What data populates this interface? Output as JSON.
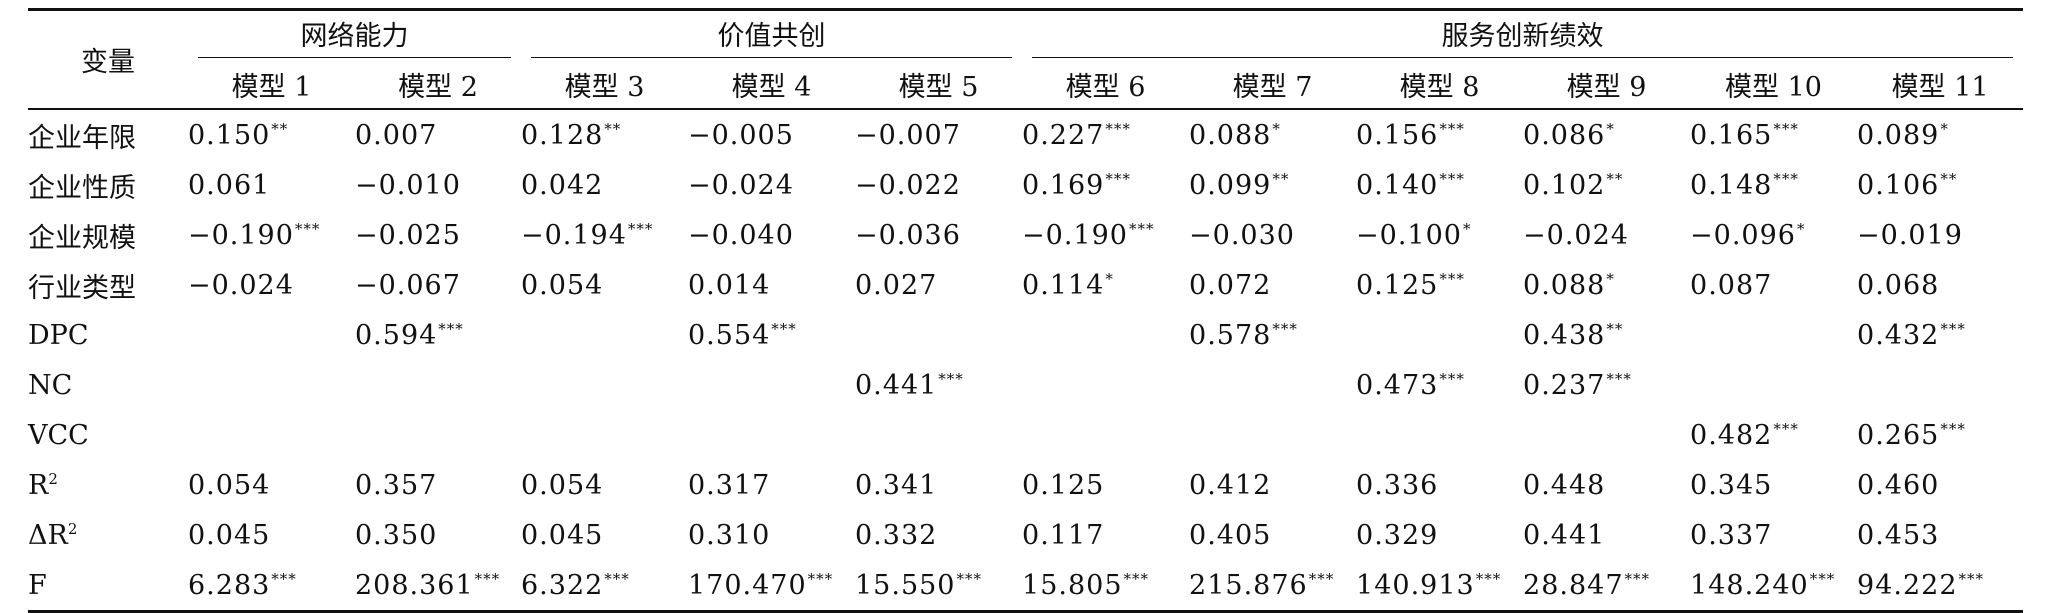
{
  "table": {
    "var_header": "变量",
    "groups": [
      {
        "label": "网络能力",
        "span": 2
      },
      {
        "label": "价值共创",
        "span": 3
      },
      {
        "label": "服务创新绩效",
        "span": 6
      }
    ],
    "models": [
      "模型 1",
      "模型 2",
      "模型 3",
      "模型 4",
      "模型 5",
      "模型 6",
      "模型 7",
      "模型 8",
      "模型 9",
      "模型 10",
      "模型 11"
    ],
    "rows": [
      {
        "label": "企业年限",
        "cells": [
          {
            "v": "0.150",
            "s": "**"
          },
          {
            "v": "0.007",
            "s": ""
          },
          {
            "v": "0.128",
            "s": "**"
          },
          {
            "v": "−0.005",
            "s": ""
          },
          {
            "v": "−0.007",
            "s": ""
          },
          {
            "v": "0.227",
            "s": "***"
          },
          {
            "v": "0.088",
            "s": "*"
          },
          {
            "v": "0.156",
            "s": "***"
          },
          {
            "v": "0.086",
            "s": "*"
          },
          {
            "v": "0.165",
            "s": "***"
          },
          {
            "v": "0.089",
            "s": "*"
          }
        ]
      },
      {
        "label": "企业性质",
        "cells": [
          {
            "v": "0.061",
            "s": ""
          },
          {
            "v": "−0.010",
            "s": ""
          },
          {
            "v": "0.042",
            "s": ""
          },
          {
            "v": "−0.024",
            "s": ""
          },
          {
            "v": "−0.022",
            "s": ""
          },
          {
            "v": "0.169",
            "s": "***"
          },
          {
            "v": "0.099",
            "s": "**"
          },
          {
            "v": "0.140",
            "s": "***"
          },
          {
            "v": "0.102",
            "s": "**"
          },
          {
            "v": "0.148",
            "s": "***"
          },
          {
            "v": "0.106",
            "s": "**"
          }
        ]
      },
      {
        "label": "企业规模",
        "cells": [
          {
            "v": "−0.190",
            "s": "***"
          },
          {
            "v": "−0.025",
            "s": ""
          },
          {
            "v": "−0.194",
            "s": "***"
          },
          {
            "v": "−0.040",
            "s": ""
          },
          {
            "v": "−0.036",
            "s": ""
          },
          {
            "v": "−0.190",
            "s": "***"
          },
          {
            "v": "−0.030",
            "s": ""
          },
          {
            "v": "−0.100",
            "s": "*"
          },
          {
            "v": "−0.024",
            "s": ""
          },
          {
            "v": "−0.096",
            "s": "*"
          },
          {
            "v": "−0.019",
            "s": ""
          }
        ]
      },
      {
        "label": "行业类型",
        "cells": [
          {
            "v": "−0.024",
            "s": ""
          },
          {
            "v": "−0.067",
            "s": ""
          },
          {
            "v": "0.054",
            "s": ""
          },
          {
            "v": "0.014",
            "s": ""
          },
          {
            "v": "0.027",
            "s": ""
          },
          {
            "v": "0.114",
            "s": "*"
          },
          {
            "v": "0.072",
            "s": ""
          },
          {
            "v": "0.125",
            "s": "***"
          },
          {
            "v": "0.088",
            "s": "*"
          },
          {
            "v": "0.087",
            "s": ""
          },
          {
            "v": "0.068",
            "s": ""
          }
        ]
      },
      {
        "label": "DPC",
        "cells": [
          {
            "v": "",
            "s": ""
          },
          {
            "v": "0.594",
            "s": "***"
          },
          {
            "v": "",
            "s": ""
          },
          {
            "v": "0.554",
            "s": "***"
          },
          {
            "v": "",
            "s": ""
          },
          {
            "v": "",
            "s": ""
          },
          {
            "v": "0.578",
            "s": "***"
          },
          {
            "v": "",
            "s": ""
          },
          {
            "v": "0.438",
            "s": "**"
          },
          {
            "v": "",
            "s": ""
          },
          {
            "v": "0.432",
            "s": "***"
          }
        ]
      },
      {
        "label": "NC",
        "cells": [
          {
            "v": "",
            "s": ""
          },
          {
            "v": "",
            "s": ""
          },
          {
            "v": "",
            "s": ""
          },
          {
            "v": "",
            "s": ""
          },
          {
            "v": "0.441",
            "s": "***"
          },
          {
            "v": "",
            "s": ""
          },
          {
            "v": "",
            "s": ""
          },
          {
            "v": "0.473",
            "s": "***"
          },
          {
            "v": "0.237",
            "s": "***"
          },
          {
            "v": "",
            "s": ""
          },
          {
            "v": "",
            "s": ""
          }
        ]
      },
      {
        "label": "VCC",
        "cells": [
          {
            "v": "",
            "s": ""
          },
          {
            "v": "",
            "s": ""
          },
          {
            "v": "",
            "s": ""
          },
          {
            "v": "",
            "s": ""
          },
          {
            "v": "",
            "s": ""
          },
          {
            "v": "",
            "s": ""
          },
          {
            "v": "",
            "s": ""
          },
          {
            "v": "",
            "s": ""
          },
          {
            "v": "",
            "s": ""
          },
          {
            "v": "0.482",
            "s": "***"
          },
          {
            "v": "0.265",
            "s": "***"
          }
        ]
      },
      {
        "label": "R",
        "label_sup": "2",
        "cells": [
          {
            "v": "0.054",
            "s": ""
          },
          {
            "v": "0.357",
            "s": ""
          },
          {
            "v": "0.054",
            "s": ""
          },
          {
            "v": "0.317",
            "s": ""
          },
          {
            "v": "0.341",
            "s": ""
          },
          {
            "v": "0.125",
            "s": ""
          },
          {
            "v": "0.412",
            "s": ""
          },
          {
            "v": "0.336",
            "s": ""
          },
          {
            "v": "0.448",
            "s": ""
          },
          {
            "v": "0.345",
            "s": ""
          },
          {
            "v": "0.460",
            "s": ""
          }
        ]
      },
      {
        "label": "ΔR",
        "label_sup": "2",
        "cells": [
          {
            "v": "0.045",
            "s": ""
          },
          {
            "v": "0.350",
            "s": ""
          },
          {
            "v": "0.045",
            "s": ""
          },
          {
            "v": "0.310",
            "s": ""
          },
          {
            "v": "0.332",
            "s": ""
          },
          {
            "v": "0.117",
            "s": ""
          },
          {
            "v": "0.405",
            "s": ""
          },
          {
            "v": "0.329",
            "s": ""
          },
          {
            "v": "0.441",
            "s": ""
          },
          {
            "v": "0.337",
            "s": ""
          },
          {
            "v": "0.453",
            "s": ""
          }
        ]
      },
      {
        "label": "F",
        "cells": [
          {
            "v": "6.283",
            "s": "***"
          },
          {
            "v": "208.361",
            "s": "***"
          },
          {
            "v": "6.322",
            "s": "***"
          },
          {
            "v": "170.470",
            "s": "***"
          },
          {
            "v": "15.550",
            "s": "***"
          },
          {
            "v": "15.805",
            "s": "***"
          },
          {
            "v": "215.876",
            "s": "***"
          },
          {
            "v": "140.913",
            "s": "***"
          },
          {
            "v": "28.847",
            "s": "***"
          },
          {
            "v": "148.240",
            "s": "***"
          },
          {
            "v": "94.222",
            "s": "***"
          }
        ]
      }
    ]
  }
}
